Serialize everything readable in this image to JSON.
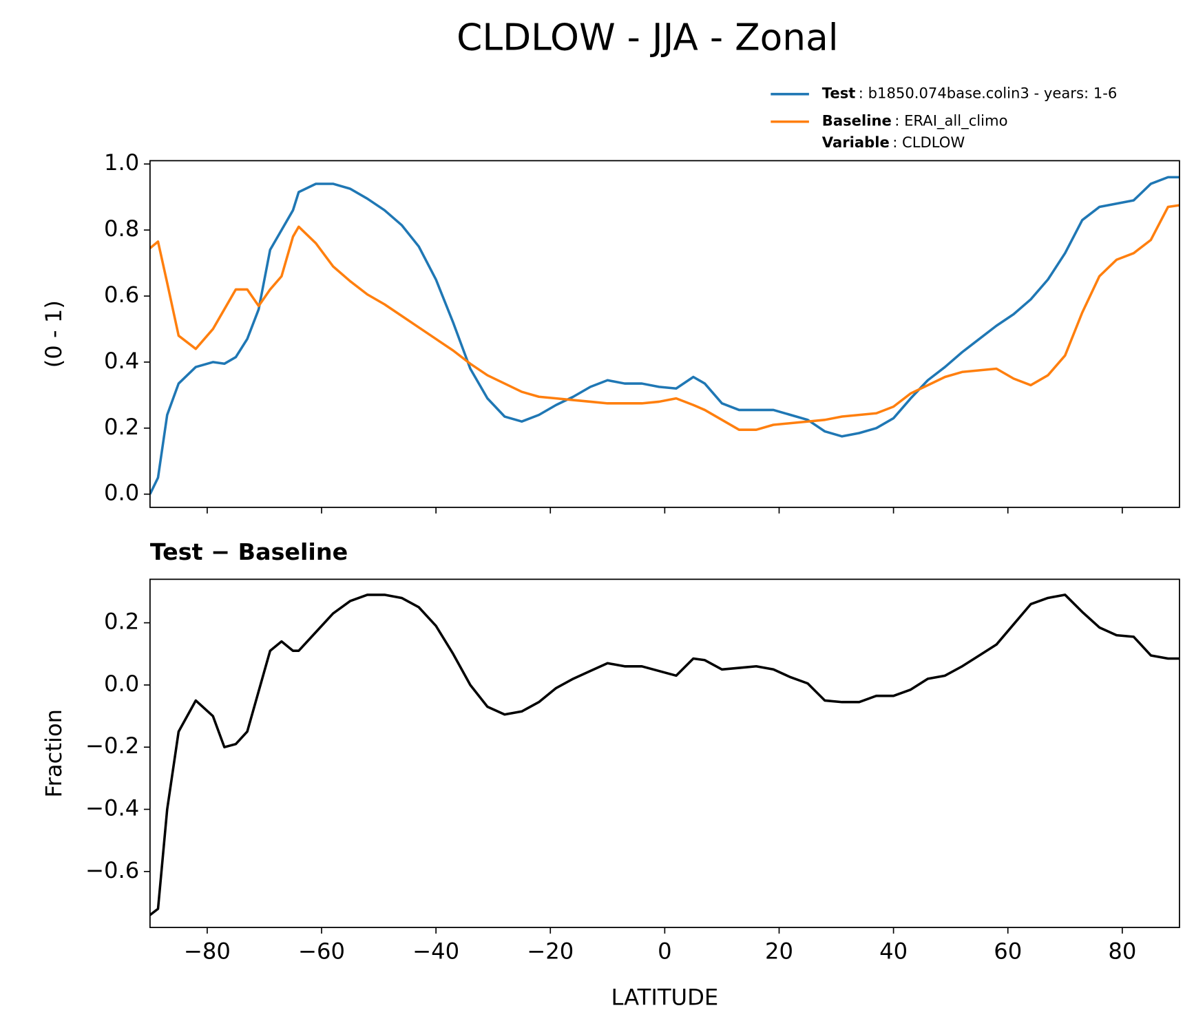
{
  "title": "CLDLOW - JJA - Zonal",
  "chart_data": [
    {
      "type": "line",
      "ylabel": "(0 - 1)",
      "x": [
        -90,
        -88.6,
        -87,
        -85,
        -82,
        -79,
        -77,
        -75,
        -73,
        -71,
        -69,
        -67,
        -65,
        -64,
        -61,
        -58,
        -55,
        -52,
        -49,
        -46,
        -43,
        -40,
        -37,
        -34,
        -31,
        -28,
        -25,
        -22,
        -19,
        -16,
        -13,
        -10,
        -7,
        -4,
        -1,
        2,
        5,
        7,
        10,
        13,
        16,
        19,
        22,
        25,
        28,
        31,
        34,
        37,
        40,
        43,
        46,
        49,
        52,
        55,
        58,
        61,
        64,
        67,
        70,
        73,
        76,
        79,
        82,
        85,
        88,
        90
      ],
      "series": [
        {
          "name": "Test",
          "description": ": b1850.074base.colin3 - years: 1-6",
          "color": "#1f77b4",
          "values": [
            0.0,
            0.05,
            0.24,
            0.335,
            0.385,
            0.4,
            0.395,
            0.415,
            0.47,
            0.56,
            0.74,
            0.8,
            0.86,
            0.915,
            0.94,
            0.94,
            0.925,
            0.895,
            0.86,
            0.815,
            0.75,
            0.65,
            0.52,
            0.38,
            0.29,
            0.235,
            0.22,
            0.24,
            0.27,
            0.295,
            0.325,
            0.345,
            0.335,
            0.335,
            0.325,
            0.32,
            0.355,
            0.335,
            0.275,
            0.255,
            0.255,
            0.255,
            0.24,
            0.225,
            0.19,
            0.175,
            0.185,
            0.2,
            0.23,
            0.29,
            0.345,
            0.385,
            0.43,
            0.47,
            0.51,
            0.545,
            0.59,
            0.65,
            0.73,
            0.83,
            0.87,
            0.88,
            0.89,
            0.94,
            0.96,
            0.96
          ]
        },
        {
          "name": "Baseline",
          "description": ": ERAI_all_climo",
          "color": "#ff7f0e",
          "values": [
            0.745,
            0.765,
            0.64,
            0.48,
            0.44,
            0.5,
            0.56,
            0.62,
            0.62,
            0.57,
            0.62,
            0.66,
            0.78,
            0.81,
            0.76,
            0.69,
            0.645,
            0.605,
            0.575,
            0.54,
            0.505,
            0.47,
            0.435,
            0.395,
            0.36,
            0.335,
            0.31,
            0.295,
            0.29,
            0.285,
            0.28,
            0.275,
            0.275,
            0.275,
            0.28,
            0.29,
            0.27,
            0.255,
            0.225,
            0.195,
            0.195,
            0.21,
            0.215,
            0.22,
            0.225,
            0.235,
            0.24,
            0.245,
            0.265,
            0.305,
            0.33,
            0.355,
            0.37,
            0.375,
            0.38,
            0.35,
            0.33,
            0.36,
            0.42,
            0.55,
            0.66,
            0.71,
            0.73,
            0.77,
            0.87,
            0.875
          ]
        }
      ],
      "legend_extra": {
        "name": "Variable",
        "description": ": CLDLOW"
      },
      "legend": "upper right",
      "xlim": [
        -90,
        90
      ],
      "xticks": [
        -80,
        -60,
        -40,
        -20,
        0,
        20,
        40,
        60,
        80
      ],
      "xticklabels": false,
      "ylim": [
        -0.04,
        1.01
      ],
      "yticks": [
        {
          "value": 0,
          "label": "0.0"
        },
        {
          "value": 0.2,
          "label": "0.2"
        },
        {
          "value": 0.4,
          "label": "0.4"
        },
        {
          "value": 0.6,
          "label": "0.6"
        },
        {
          "value": 0.8,
          "label": "0.8"
        },
        {
          "value": 1,
          "label": "1.0"
        }
      ]
    },
    {
      "type": "line",
      "title": "Test − Baseline",
      "xlabel": "LATITUDE",
      "ylabel": "Fraction",
      "x": [
        -90,
        -88.6,
        -87,
        -85,
        -82,
        -79,
        -77,
        -75,
        -73,
        -71,
        -69,
        -67,
        -65,
        -64,
        -61,
        -58,
        -55,
        -52,
        -49,
        -46,
        -43,
        -40,
        -37,
        -34,
        -31,
        -28,
        -25,
        -22,
        -19,
        -16,
        -13,
        -10,
        -7,
        -4,
        -1,
        2,
        5,
        7,
        10,
        13,
        16,
        19,
        22,
        25,
        28,
        31,
        34,
        37,
        40,
        43,
        46,
        49,
        52,
        55,
        58,
        61,
        64,
        67,
        70,
        73,
        76,
        79,
        82,
        85,
        88,
        90
      ],
      "color": "#000000",
      "values": [
        -0.74,
        -0.72,
        -0.4,
        -0.15,
        -0.05,
        -0.1,
        -0.2,
        -0.19,
        -0.15,
        -0.02,
        0.11,
        0.14,
        0.11,
        0.11,
        0.17,
        0.23,
        0.27,
        0.29,
        0.29,
        0.28,
        0.25,
        0.19,
        0.1,
        0.0,
        -0.07,
        -0.095,
        -0.085,
        -0.055,
        -0.01,
        0.02,
        0.045,
        0.07,
        0.06,
        0.06,
        0.045,
        0.03,
        0.085,
        0.08,
        0.05,
        0.055,
        0.06,
        0.05,
        0.025,
        0.005,
        -0.05,
        -0.055,
        -0.055,
        -0.035,
        -0.035,
        -0.015,
        0.02,
        0.03,
        0.06,
        0.095,
        0.13,
        0.195,
        0.26,
        0.28,
        0.29,
        0.235,
        0.185,
        0.16,
        0.155,
        0.095,
        0.085,
        0.085
      ],
      "xlim": [
        -90,
        90
      ],
      "xticks": [
        {
          "value": -80,
          "label": "−80"
        },
        {
          "value": -60,
          "label": "−60"
        },
        {
          "value": -40,
          "label": "−40"
        },
        {
          "value": -20,
          "label": "−20"
        },
        0,
        20,
        40,
        60,
        80
      ],
      "xticklabels": true,
      "ylim": [
        -0.78,
        0.34
      ],
      "yticks": [
        {
          "value": -0.6,
          "label": "−0.6"
        },
        {
          "value": -0.4,
          "label": "−0.4"
        },
        {
          "value": -0.2,
          "label": "−0.2"
        },
        {
          "value": 0,
          "label": "0.0"
        },
        {
          "value": 0.2,
          "label": "0.2"
        }
      ]
    }
  ]
}
